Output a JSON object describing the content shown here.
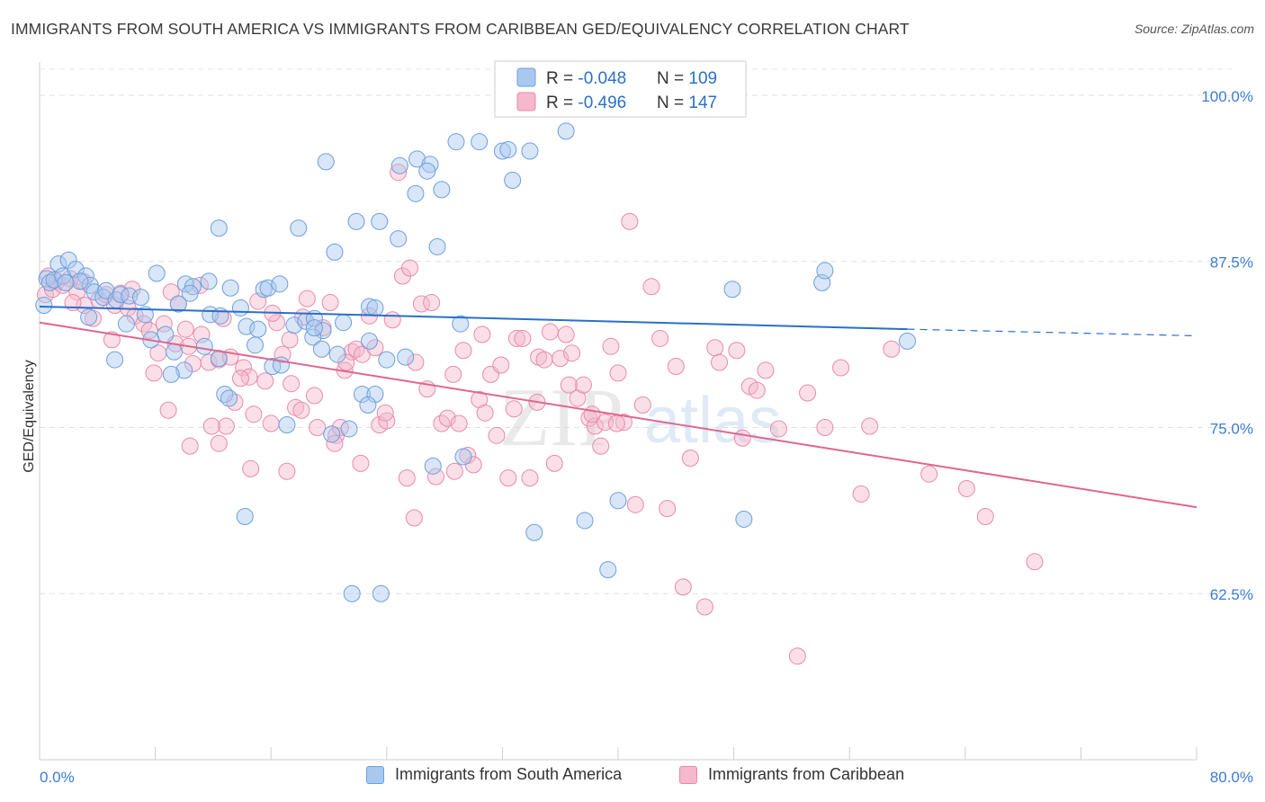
{
  "title": "IMMIGRANTS FROM SOUTH AMERICA VS IMMIGRANTS FROM CARIBBEAN GED/EQUIVALENCY CORRELATION CHART",
  "source": "Source: ZipAtlas.com",
  "watermark": {
    "zip": "ZIP",
    "atlas": "atlas"
  },
  "colors": {
    "blue_fill": "#a9c8f0",
    "blue_stroke": "#6d9fdc",
    "blue_line": "#2970c9",
    "pink_fill": "#f5b8cc",
    "pink_stroke": "#e98aaa",
    "pink_line": "#e0668f",
    "axis_text_blue": "#3c7bd4",
    "grid": "#dddddd"
  },
  "legend_top": [
    {
      "r_label": "R = ",
      "r_value": "-0.048",
      "n_label": "N = ",
      "n_value": "109"
    },
    {
      "r_label": "R = ",
      "r_value": "-0.496",
      "n_label": "N = ",
      "n_value": "147"
    }
  ],
  "legend_bottom": [
    "Immigrants from South America",
    "Immigrants from Caribbean"
  ],
  "chart_data": {
    "type": "scatter",
    "title": "IMMIGRANTS FROM SOUTH AMERICA VS IMMIGRANTS FROM CARIBBEAN GED/EQUIVALENCY CORRELATION CHART",
    "xlabel": "",
    "ylabel": "GED/Equivalency",
    "xlim": [
      0,
      80
    ],
    "ylim": [
      50,
      102.5
    ],
    "x_tick_labels": [
      "0.0%",
      "80.0%"
    ],
    "y_tick_labels": [
      "62.5%",
      "75.0%",
      "87.5%",
      "100.0%"
    ],
    "y_ticks": [
      62.5,
      75.0,
      87.5,
      100.0
    ],
    "grid": true,
    "legend_position": "top-center",
    "series": [
      {
        "name": "Immigrants from South America",
        "color": "#a9c8f0",
        "r": -0.048,
        "n": 109,
        "trend": {
          "x0": 0,
          "y0": 84.1,
          "x1": 60,
          "y1": 82.4,
          "dashed_to_x": 80,
          "dashed_to_y": 81.9
        },
        "points": [
          [
            0.3,
            84.2
          ],
          [
            0.5,
            86.2
          ],
          [
            0.7,
            85.9
          ],
          [
            1.0,
            86.1
          ],
          [
            1.3,
            87.3
          ],
          [
            1.6,
            86.4
          ],
          [
            2.0,
            87.6
          ],
          [
            2.5,
            86.9
          ],
          [
            3.2,
            86.4
          ],
          [
            3.5,
            85.7
          ],
          [
            2.8,
            86.0
          ],
          [
            3.8,
            85.2
          ],
          [
            4.4,
            84.8
          ],
          [
            4.6,
            85.3
          ],
          [
            5.3,
            84.6
          ],
          [
            5.6,
            85.0
          ],
          [
            6.2,
            84.9
          ],
          [
            7.0,
            84.8
          ],
          [
            8.1,
            86.6
          ],
          [
            10.1,
            85.8
          ],
          [
            10.6,
            85.6
          ],
          [
            10.4,
            85.1
          ],
          [
            9.6,
            84.3
          ],
          [
            11.8,
            83.5
          ],
          [
            12.5,
            83.4
          ],
          [
            13.2,
            85.5
          ],
          [
            13.9,
            84.0
          ],
          [
            15.5,
            85.4
          ],
          [
            15.8,
            85.5
          ],
          [
            16.6,
            85.8
          ],
          [
            14.3,
            82.6
          ],
          [
            15.1,
            82.4
          ],
          [
            17.6,
            82.7
          ],
          [
            18.4,
            83.0
          ],
          [
            19.0,
            83.2
          ],
          [
            19.6,
            82.3
          ],
          [
            21.0,
            82.9
          ],
          [
            22.8,
            84.1
          ],
          [
            23.2,
            84.0
          ],
          [
            8.7,
            82.0
          ],
          [
            9.3,
            80.7
          ],
          [
            10.0,
            79.3
          ],
          [
            11.4,
            81.1
          ],
          [
            12.4,
            80.2
          ],
          [
            14.9,
            81.2
          ],
          [
            16.1,
            79.6
          ],
          [
            16.7,
            79.7
          ],
          [
            18.9,
            81.8
          ],
          [
            19.5,
            80.9
          ],
          [
            20.6,
            80.5
          ],
          [
            22.8,
            81.5
          ],
          [
            25.3,
            80.3
          ],
          [
            5.2,
            80.1
          ],
          [
            7.7,
            81.6
          ],
          [
            9.1,
            79.0
          ],
          [
            12.8,
            77.5
          ],
          [
            13.1,
            77.2
          ],
          [
            17.1,
            75.2
          ],
          [
            20.2,
            74.5
          ],
          [
            21.4,
            74.9
          ],
          [
            22.3,
            77.5
          ],
          [
            23.2,
            77.5
          ],
          [
            22.7,
            76.7
          ],
          [
            12.4,
            90.0
          ],
          [
            17.9,
            90.0
          ],
          [
            19.8,
            95.0
          ],
          [
            20.4,
            88.2
          ],
          [
            21.9,
            90.5
          ],
          [
            23.5,
            90.5
          ],
          [
            24.8,
            89.2
          ],
          [
            24.9,
            94.7
          ],
          [
            26.1,
            95.2
          ],
          [
            27.0,
            94.8
          ],
          [
            26.0,
            92.6
          ],
          [
            26.8,
            94.3
          ],
          [
            27.5,
            88.6
          ],
          [
            27.8,
            92.9
          ],
          [
            28.8,
            96.5
          ],
          [
            29.1,
            82.8
          ],
          [
            30.4,
            96.5
          ],
          [
            32.0,
            95.8
          ],
          [
            32.4,
            95.9
          ],
          [
            32.7,
            93.6
          ],
          [
            33.9,
            95.8
          ],
          [
            36.4,
            97.3
          ],
          [
            36.9,
            100.0
          ],
          [
            37.0,
            100.0
          ],
          [
            40.2,
            100.0
          ],
          [
            34.2,
            67.1
          ],
          [
            37.7,
            68.0
          ],
          [
            39.3,
            64.3
          ],
          [
            40.0,
            69.5
          ],
          [
            47.9,
            85.4
          ],
          [
            48.7,
            68.1
          ],
          [
            54.1,
            85.9
          ],
          [
            54.3,
            86.8
          ],
          [
            60.0,
            81.5
          ],
          [
            14.2,
            68.3
          ],
          [
            21.6,
            62.5
          ],
          [
            23.6,
            62.5
          ],
          [
            27.2,
            72.1
          ],
          [
            29.3,
            72.8
          ],
          [
            19.0,
            82.5
          ],
          [
            24.0,
            80.1
          ],
          [
            11.7,
            86.0
          ],
          [
            3.4,
            83.3
          ],
          [
            6.0,
            82.8
          ],
          [
            7.3,
            83.5
          ],
          [
            1.8,
            85.9
          ]
        ]
      },
      {
        "name": "Immigrants from Caribbean",
        "color": "#f5b8cc",
        "r": -0.496,
        "n": 147,
        "trend": {
          "x0": 0,
          "y0": 82.9,
          "x1": 80,
          "y1": 69.0
        },
        "points": [
          [
            0.4,
            85.0
          ],
          [
            0.6,
            86.4
          ],
          [
            0.9,
            85.4
          ],
          [
            1.2,
            86.0
          ],
          [
            1.6,
            85.7
          ],
          [
            2.1,
            86.2
          ],
          [
            2.6,
            85.2
          ],
          [
            3.1,
            84.2
          ],
          [
            3.7,
            83.2
          ],
          [
            4.1,
            84.6
          ],
          [
            4.6,
            85.0
          ],
          [
            5.2,
            84.2
          ],
          [
            5.6,
            85.1
          ],
          [
            6.1,
            84.0
          ],
          [
            6.6,
            83.4
          ],
          [
            7.2,
            82.8
          ],
          [
            7.6,
            82.3
          ],
          [
            8.2,
            80.6
          ],
          [
            8.6,
            82.8
          ],
          [
            9.1,
            85.2
          ],
          [
            9.4,
            81.3
          ],
          [
            10.1,
            82.4
          ],
          [
            10.6,
            79.8
          ],
          [
            11.2,
            82.0
          ],
          [
            11.7,
            79.9
          ],
          [
            12.4,
            80.1
          ],
          [
            12.9,
            75.1
          ],
          [
            13.5,
            76.9
          ],
          [
            14.1,
            79.5
          ],
          [
            14.5,
            78.8
          ],
          [
            14.8,
            76.0
          ],
          [
            15.6,
            78.5
          ],
          [
            16.4,
            82.9
          ],
          [
            16.8,
            80.5
          ],
          [
            17.4,
            78.3
          ],
          [
            17.7,
            76.5
          ],
          [
            18.5,
            84.7
          ],
          [
            18.2,
            83.3
          ],
          [
            19.0,
            77.4
          ],
          [
            19.6,
            82.5
          ],
          [
            20.1,
            84.4
          ],
          [
            20.5,
            74.4
          ],
          [
            20.8,
            75.0
          ],
          [
            21.1,
            79.3
          ],
          [
            21.6,
            80.7
          ],
          [
            21.9,
            80.9
          ],
          [
            22.3,
            80.5
          ],
          [
            23.2,
            81.0
          ],
          [
            23.5,
            75.2
          ],
          [
            24.0,
            75.5
          ],
          [
            24.4,
            83.1
          ],
          [
            24.8,
            94.2
          ],
          [
            25.1,
            86.4
          ],
          [
            25.6,
            87.0
          ],
          [
            25.4,
            71.2
          ],
          [
            26.0,
            79.9
          ],
          [
            26.4,
            84.3
          ],
          [
            26.8,
            77.9
          ],
          [
            27.4,
            71.3
          ],
          [
            27.8,
            75.3
          ],
          [
            28.2,
            75.7
          ],
          [
            28.6,
            79.0
          ],
          [
            29.0,
            75.3
          ],
          [
            29.3,
            80.8
          ],
          [
            29.6,
            72.9
          ],
          [
            30.0,
            72.2
          ],
          [
            30.4,
            77.1
          ],
          [
            30.8,
            76.1
          ],
          [
            31.2,
            79.0
          ],
          [
            31.6,
            74.4
          ],
          [
            31.9,
            79.7
          ],
          [
            32.4,
            71.2
          ],
          [
            33.0,
            81.7
          ],
          [
            33.4,
            81.7
          ],
          [
            33.9,
            71.2
          ],
          [
            34.5,
            80.3
          ],
          [
            34.9,
            80.1
          ],
          [
            35.3,
            82.2
          ],
          [
            35.6,
            72.3
          ],
          [
            36.0,
            80.2
          ],
          [
            36.4,
            82.0
          ],
          [
            36.8,
            80.6
          ],
          [
            37.2,
            77.2
          ],
          [
            37.6,
            78.2
          ],
          [
            38.0,
            75.7
          ],
          [
            38.4,
            75.1
          ],
          [
            38.8,
            73.6
          ],
          [
            39.1,
            75.4
          ],
          [
            39.5,
            81.1
          ],
          [
            40.0,
            79.1
          ],
          [
            40.4,
            75.4
          ],
          [
            40.8,
            90.5
          ],
          [
            41.2,
            69.2
          ],
          [
            41.7,
            76.7
          ],
          [
            42.3,
            85.6
          ],
          [
            42.9,
            81.7
          ],
          [
            43.4,
            68.9
          ],
          [
            44.0,
            79.6
          ],
          [
            44.5,
            63.0
          ],
          [
            45.0,
            72.7
          ],
          [
            46.0,
            61.5
          ],
          [
            46.7,
            81.0
          ],
          [
            47.0,
            79.9
          ],
          [
            48.2,
            80.8
          ],
          [
            48.6,
            74.2
          ],
          [
            49.1,
            78.1
          ],
          [
            49.6,
            77.8
          ],
          [
            50.2,
            79.3
          ],
          [
            51.1,
            74.9
          ],
          [
            52.4,
            57.8
          ],
          [
            53.1,
            77.6
          ],
          [
            54.3,
            75.0
          ],
          [
            55.4,
            79.5
          ],
          [
            56.8,
            70.0
          ],
          [
            57.4,
            75.1
          ],
          [
            58.9,
            80.9
          ],
          [
            61.5,
            71.5
          ],
          [
            64.1,
            70.4
          ],
          [
            65.4,
            68.3
          ],
          [
            68.8,
            64.9
          ],
          [
            2.3,
            84.4
          ],
          [
            3.0,
            86.0
          ],
          [
            5.0,
            81.6
          ],
          [
            6.4,
            85.4
          ],
          [
            7.9,
            79.1
          ],
          [
            8.9,
            76.3
          ],
          [
            10.4,
            73.6
          ],
          [
            11.9,
            75.1
          ],
          [
            12.4,
            73.8
          ],
          [
            13.2,
            80.3
          ],
          [
            14.6,
            71.9
          ],
          [
            15.1,
            84.5
          ],
          [
            16.0,
            75.3
          ],
          [
            17.1,
            71.7
          ],
          [
            18.1,
            76.3
          ],
          [
            19.2,
            75.0
          ],
          [
            20.4,
            73.8
          ],
          [
            21.2,
            79.9
          ],
          [
            22.2,
            72.3
          ],
          [
            22.8,
            83.4
          ],
          [
            23.9,
            76.1
          ],
          [
            25.9,
            68.2
          ],
          [
            27.1,
            84.4
          ],
          [
            28.7,
            71.7
          ],
          [
            30.6,
            82.0
          ],
          [
            32.8,
            76.4
          ],
          [
            34.4,
            76.9
          ],
          [
            36.6,
            78.2
          ],
          [
            38.2,
            76.0
          ],
          [
            39.9,
            75.3
          ],
          [
            11.1,
            85.7
          ],
          [
            9.6,
            84.3
          ],
          [
            10.3,
            81.1
          ],
          [
            12.7,
            83.2
          ],
          [
            16.1,
            83.6
          ],
          [
            17.3,
            81.6
          ],
          [
            13.9,
            78.7
          ]
        ]
      }
    ]
  }
}
